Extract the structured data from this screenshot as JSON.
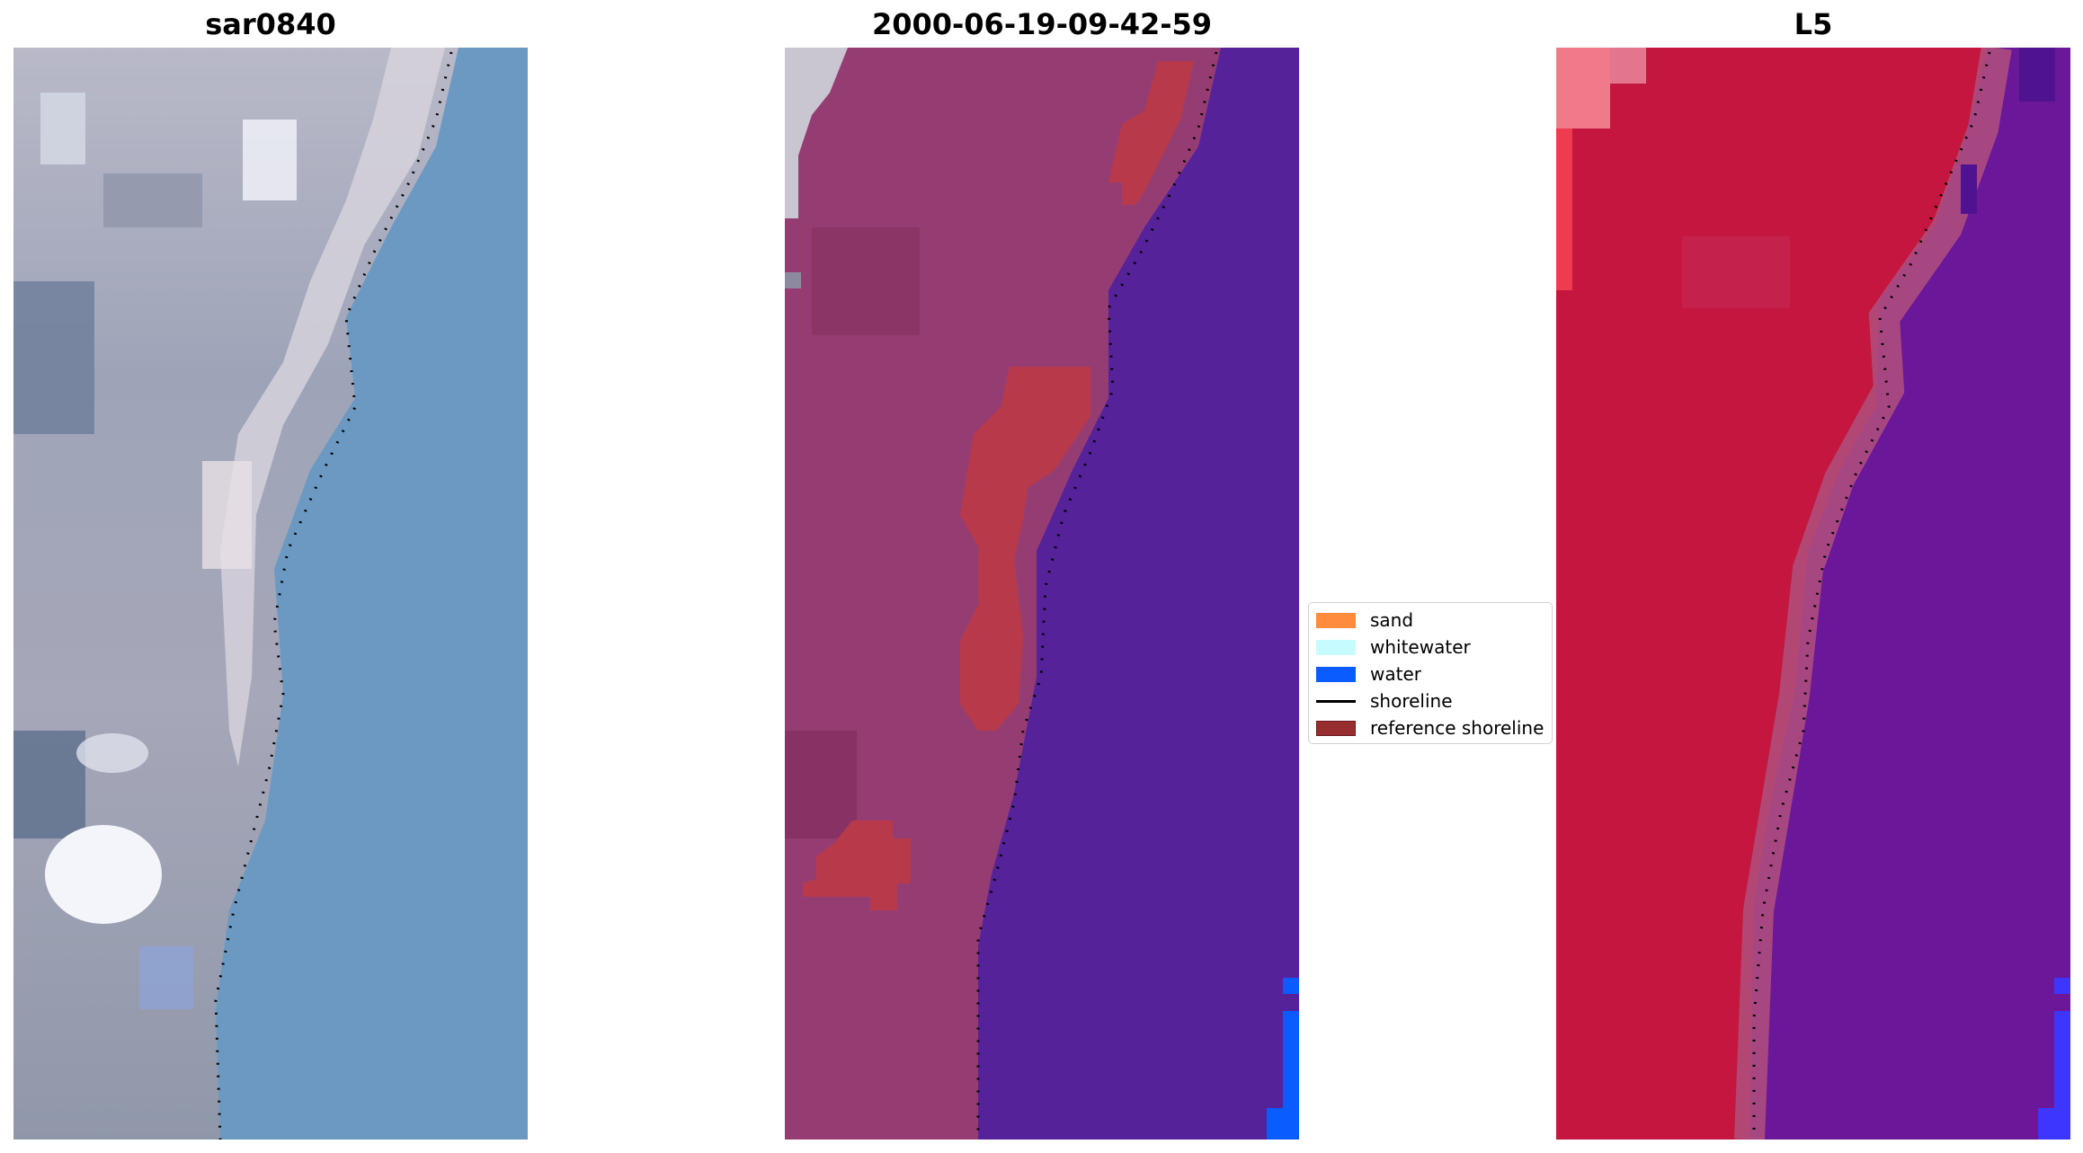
{
  "titles": {
    "left": "sar0840",
    "center": "2000-06-19-09-42-59",
    "right": "L5"
  },
  "legend": {
    "items": [
      {
        "label": "sand",
        "color": "#ff8b3d",
        "kind": "patch"
      },
      {
        "label": "whitewater",
        "color": "#c6fbff",
        "kind": "patch"
      },
      {
        "label": "water",
        "color": "#0a5cff",
        "kind": "patch"
      },
      {
        "label": "shoreline",
        "color": "#000000",
        "kind": "line"
      },
      {
        "label": "reference shoreline",
        "color": "#962e30",
        "kind": "patch"
      }
    ]
  },
  "colors": {
    "rgb_water": "#6b99c2",
    "classified_water": "#55229a",
    "classified_land": "#953d73",
    "reference_shoreline": "#b83a4a",
    "index_land": "#c4163f",
    "index_water": "#6a1799"
  }
}
